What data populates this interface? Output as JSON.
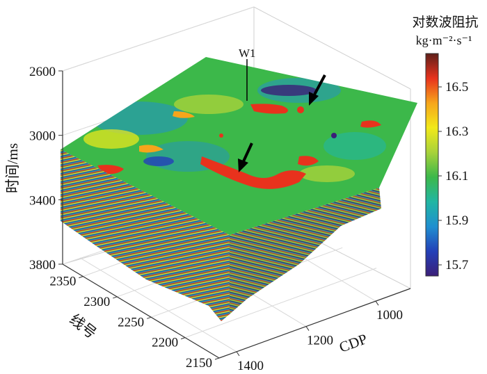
{
  "chart_data": {
    "type": "3d-seismic-volume",
    "title": "",
    "axes": {
      "z": {
        "label": "时间/ms",
        "ticks": [
          "2600",
          "3000",
          "3400",
          "3800"
        ],
        "range": [
          2600,
          3800
        ]
      },
      "line": {
        "label": "线号",
        "ticks": [
          "2350",
          "2300",
          "2250",
          "2200",
          "2150"
        ],
        "range": [
          2150,
          2380
        ]
      },
      "cdp": {
        "label": "CDP",
        "ticks": [
          "1000",
          "1200",
          "1400"
        ],
        "range": [
          900,
          1450
        ]
      }
    },
    "grid": true,
    "colorbar": {
      "title": "对数波阻抗",
      "unit": "kg·m⁻²·s⁻¹",
      "ticks": [
        "16.5",
        "16.3",
        "16.1",
        "15.9",
        "15.7"
      ],
      "range": [
        15.65,
        16.65
      ],
      "colors": [
        "#3b1f78",
        "#2340b8",
        "#1f8fd0",
        "#21b6a3",
        "#3cb84a",
        "#a8d23a",
        "#f2e91a",
        "#f6a51b",
        "#e8321d",
        "#5e1f1a"
      ]
    },
    "annotations": [
      {
        "label": "W1",
        "type": "well"
      },
      {
        "type": "arrow"
      },
      {
        "type": "arrow"
      }
    ]
  }
}
